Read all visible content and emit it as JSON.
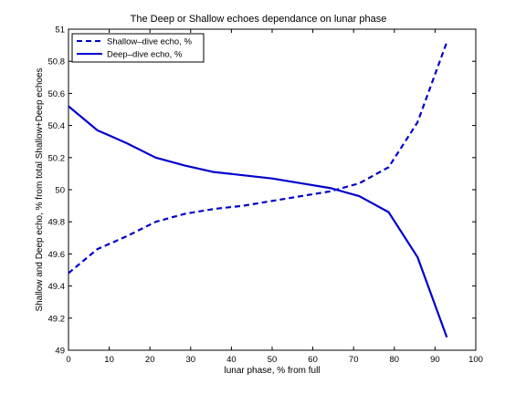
{
  "chart_data": {
    "type": "line",
    "title": "The Deep or Shallow echoes dependance on lunar phase",
    "xlabel": "lunar phase, % from full",
    "ylabel": "Shallow and Deep echo, % from total Shallow+Deep echoes",
    "xlim": [
      0,
      100
    ],
    "ylim": [
      49,
      51
    ],
    "xticks": [
      "0",
      "10",
      "20",
      "30",
      "40",
      "50",
      "60",
      "70",
      "80",
      "90",
      "100"
    ],
    "yticks": [
      "49",
      "49.2",
      "49.4",
      "49.6",
      "49.8",
      "50",
      "50.2",
      "50.4",
      "50.6",
      "50.8",
      "51"
    ],
    "grid": false,
    "legend_position": "top-left",
    "color": "#0000CC",
    "x": [
      0,
      7.1,
      14.3,
      21.4,
      28.6,
      35.7,
      42.9,
      50,
      57.1,
      64.3,
      71.4,
      78.6,
      85.7,
      92.9
    ],
    "series": [
      {
        "name": "Shallow–dive echo, %",
        "style": "dashed",
        "values": [
          49.48,
          49.63,
          49.71,
          49.8,
          49.85,
          49.88,
          49.9,
          49.93,
          49.96,
          49.99,
          50.04,
          50.14,
          50.42,
          50.92
        ]
      },
      {
        "name": "Deep–dive echo, %",
        "style": "solid",
        "values": [
          50.52,
          50.37,
          50.29,
          50.2,
          50.15,
          50.11,
          50.09,
          50.07,
          50.04,
          50.01,
          49.96,
          49.86,
          49.58,
          49.08
        ]
      }
    ]
  }
}
